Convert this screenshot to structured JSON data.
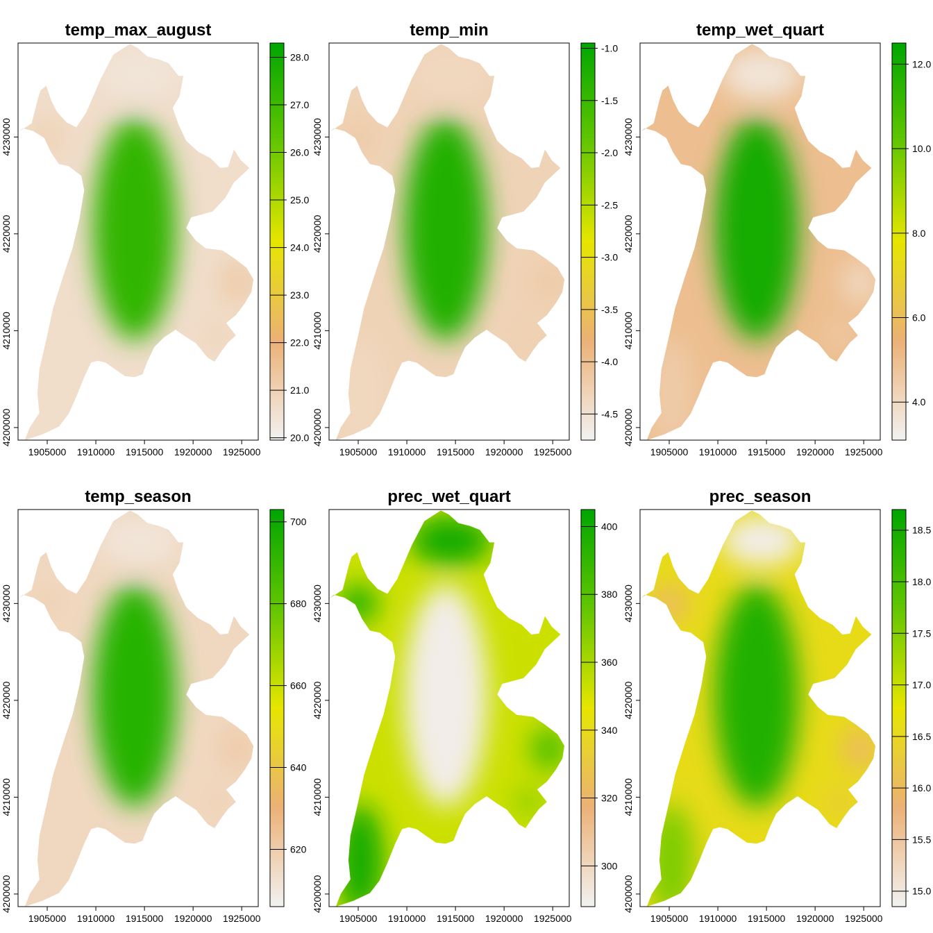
{
  "figure": {
    "ramp": [
      "#f2f2f2",
      "#ecb176",
      "#e6e600",
      "#63c600",
      "#00a600"
    ],
    "x_ticks": [
      "1905000",
      "1910000",
      "1915000",
      "1920000",
      "1925000"
    ],
    "y_ticks": [
      "4200000",
      "4210000",
      "4220000",
      "4230000"
    ]
  },
  "chart_data": [
    {
      "type": "heatmap",
      "title": "temp_max_august",
      "legend_ticks": [
        "20.0",
        "21.0",
        "22.0",
        "23.0",
        "24.0",
        "25.0",
        "26.0",
        "27.0",
        "28.0"
      ],
      "legend_range": [
        19.95,
        28.3
      ],
      "field": {
        "center_high": 0.88,
        "edge_low": 0.08,
        "north_low": 0.05,
        "east_low": 0.15,
        "west_low": 0.12,
        "southwest_low": 0.08
      }
    },
    {
      "type": "heatmap",
      "title": "temp_min",
      "legend_ticks": [
        "-4.5",
        "-4.0",
        "-3.5",
        "-3.0",
        "-2.5",
        "-2.0",
        "-1.5",
        "-1.0"
      ],
      "legend_range": [
        -4.75,
        -0.95
      ],
      "field": {
        "center_high": 0.92,
        "edge_low": 0.12,
        "north_low": 0.1,
        "east_low": 0.15,
        "west_low": 0.15,
        "southwest_low": 0.1
      }
    },
    {
      "type": "heatmap",
      "title": "temp_wet_quart",
      "legend_ticks": [
        "4.0",
        "6.0",
        "8.0",
        "10.0",
        "12.0"
      ],
      "legend_range": [
        3.1,
        12.5
      ],
      "field": {
        "center_high": 0.95,
        "edge_low": 0.2,
        "north_low": 0.05,
        "east_low": 0.1,
        "west_low": 0.2,
        "southwest_low": 0.15
      }
    },
    {
      "type": "heatmap",
      "title": "temp_season",
      "legend_ticks": [
        "620",
        "640",
        "660",
        "680",
        "700"
      ],
      "legend_range": [
        606,
        703
      ],
      "field": {
        "center_high": 0.9,
        "edge_low": 0.1,
        "north_low": 0.05,
        "east_low": 0.15,
        "west_low": 0.12,
        "southwest_low": 0.1
      }
    },
    {
      "type": "heatmap",
      "title": "prec_wet_quart",
      "legend_ticks": [
        "300",
        "320",
        "340",
        "360",
        "380",
        "400"
      ],
      "legend_range": [
        288,
        405
      ],
      "field": {
        "center_high": 0.02,
        "edge_low": 0.55,
        "north_low": 0.95,
        "east_low": 0.8,
        "west_low": 0.9,
        "southwest_low": 0.95
      }
    },
    {
      "type": "heatmap",
      "title": "prec_season",
      "legend_ticks": [
        "15.0",
        "15.5",
        "16.0",
        "16.5",
        "17.0",
        "17.5",
        "18.0",
        "18.5"
      ],
      "legend_range": [
        14.85,
        18.7
      ],
      "field": {
        "center_high": 0.92,
        "edge_low": 0.45,
        "north_low": 0.02,
        "east_low": 0.3,
        "west_low": 0.3,
        "southwest_low": 0.7
      }
    }
  ]
}
